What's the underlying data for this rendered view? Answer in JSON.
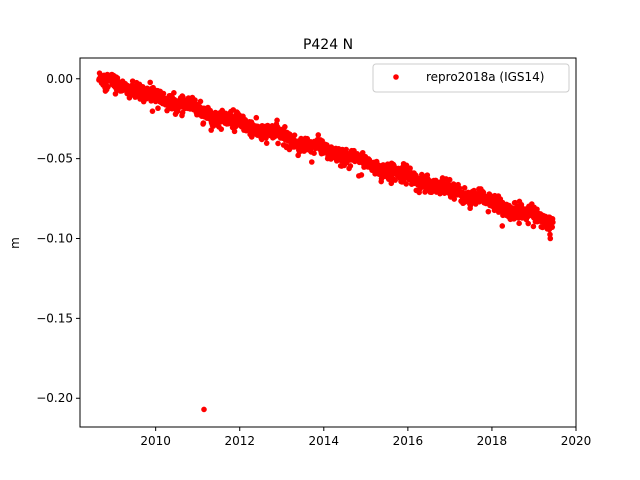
{
  "chart_data": {
    "type": "scatter",
    "title": "P424 N",
    "xlabel": "",
    "ylabel": "m",
    "xlim": [
      2008.2,
      2020.0
    ],
    "ylim": [
      -0.218,
      0.013
    ],
    "xticks": [
      2010,
      2012,
      2014,
      2016,
      2018,
      2020
    ],
    "xtick_labels": [
      "2010",
      "2012",
      "2014",
      "2016",
      "2018",
      "2020"
    ],
    "yticks": [
      0.0,
      -0.05,
      -0.1,
      -0.15,
      -0.2
    ],
    "ytick_labels": [
      "0.00",
      "−0.05",
      "−0.10",
      "−0.15",
      "−0.20"
    ],
    "grid": false,
    "legend_position": "top-right",
    "series": [
      {
        "name": "repro2018a (IGS14)",
        "color": "#ff0000",
        "marker": "circle",
        "time_range": [
          2008.65,
          2019.45
        ],
        "start_value": 0.0,
        "end_value": -0.089,
        "trend_m_per_year": -0.0083,
        "scatter_m": 0.0025,
        "outliers": [
          {
            "x": 2011.15,
            "y": -0.207
          }
        ],
        "points": [
          {
            "x": 2008.7,
            "y": -0.001
          },
          {
            "x": 2008.9,
            "y": 0.001
          },
          {
            "x": 2009.0,
            "y": 0.002
          },
          {
            "x": 2009.2,
            "y": -0.002
          },
          {
            "x": 2009.4,
            "y": -0.005
          },
          {
            "x": 2009.6,
            "y": -0.007
          },
          {
            "x": 2009.8,
            "y": -0.009
          },
          {
            "x": 2010.0,
            "y": -0.011
          },
          {
            "x": 2010.2,
            "y": -0.012
          },
          {
            "x": 2010.4,
            "y": -0.014
          },
          {
            "x": 2010.6,
            "y": -0.016
          },
          {
            "x": 2010.8,
            "y": -0.018
          },
          {
            "x": 2011.0,
            "y": -0.018
          },
          {
            "x": 2011.2,
            "y": -0.022
          },
          {
            "x": 2011.4,
            "y": -0.024
          },
          {
            "x": 2011.6,
            "y": -0.026
          },
          {
            "x": 2011.8,
            "y": -0.027
          },
          {
            "x": 2012.0,
            "y": -0.029
          },
          {
            "x": 2012.2,
            "y": -0.031
          },
          {
            "x": 2012.4,
            "y": -0.032
          },
          {
            "x": 2012.6,
            "y": -0.033
          },
          {
            "x": 2012.8,
            "y": -0.035
          },
          {
            "x": 2013.0,
            "y": -0.037
          },
          {
            "x": 2013.2,
            "y": -0.038
          },
          {
            "x": 2013.4,
            "y": -0.039
          },
          {
            "x": 2013.6,
            "y": -0.041
          },
          {
            "x": 2013.8,
            "y": -0.043
          },
          {
            "x": 2014.0,
            "y": -0.044
          },
          {
            "x": 2014.2,
            "y": -0.046
          },
          {
            "x": 2014.4,
            "y": -0.047
          },
          {
            "x": 2014.6,
            "y": -0.049
          },
          {
            "x": 2014.8,
            "y": -0.051
          },
          {
            "x": 2015.0,
            "y": -0.053
          },
          {
            "x": 2015.2,
            "y": -0.054
          },
          {
            "x": 2015.4,
            "y": -0.056
          },
          {
            "x": 2015.6,
            "y": -0.058
          },
          {
            "x": 2015.8,
            "y": -0.061
          },
          {
            "x": 2016.0,
            "y": -0.062
          },
          {
            "x": 2016.2,
            "y": -0.063
          },
          {
            "x": 2016.4,
            "y": -0.065
          },
          {
            "x": 2016.6,
            "y": -0.066
          },
          {
            "x": 2016.8,
            "y": -0.068
          },
          {
            "x": 2017.0,
            "y": -0.069
          },
          {
            "x": 2017.2,
            "y": -0.071
          },
          {
            "x": 2017.4,
            "y": -0.072
          },
          {
            "x": 2017.6,
            "y": -0.074
          },
          {
            "x": 2017.8,
            "y": -0.076
          },
          {
            "x": 2018.0,
            "y": -0.078
          },
          {
            "x": 2018.2,
            "y": -0.079
          },
          {
            "x": 2018.4,
            "y": -0.081
          },
          {
            "x": 2018.6,
            "y": -0.083
          },
          {
            "x": 2018.8,
            "y": -0.085
          },
          {
            "x": 2019.0,
            "y": -0.086
          },
          {
            "x": 2019.2,
            "y": -0.088
          },
          {
            "x": 2019.4,
            "y": -0.089
          }
        ]
      }
    ]
  }
}
